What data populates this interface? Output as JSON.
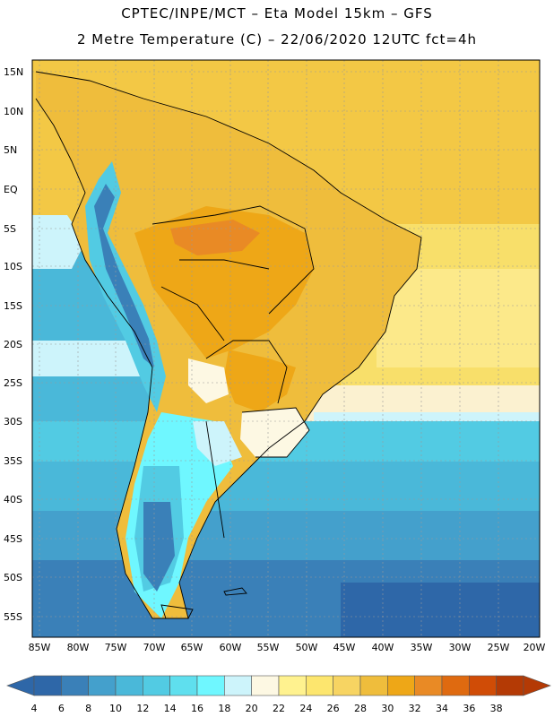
{
  "header": {
    "line1": "CPTEC/INPE/MCT –  Eta Model 15km – GFS",
    "line2": "2 Metre Temperature (C) – 22/06/2020 12UTC fct=4h"
  },
  "map": {
    "lat_labels": [
      "15N",
      "10N",
      "5N",
      "EQ",
      "5S",
      "10S",
      "15S",
      "20S",
      "25S",
      "30S",
      "35S",
      "40S",
      "45S",
      "50S",
      "55S"
    ],
    "lon_labels": [
      "85W",
      "80W",
      "75W",
      "70W",
      "65W",
      "60W",
      "55W",
      "50W",
      "45W",
      "40W",
      "35W",
      "30W",
      "25W",
      "20W"
    ]
  },
  "colorbar": {
    "labels": [
      "4",
      "6",
      "8",
      "10",
      "12",
      "14",
      "16",
      "18",
      "20",
      "22",
      "24",
      "26",
      "28",
      "30",
      "32",
      "34",
      "36",
      "38"
    ],
    "colors": [
      "#2e67a8",
      "#3a80b8",
      "#44a0cc",
      "#4ab8d9",
      "#52cbe3",
      "#5fdfee",
      "#6ff7ff",
      "#cdf4fb",
      "#fdf8e3",
      "#fff28f",
      "#fde66e",
      "#f7d462",
      "#efbd3c",
      "#eea717",
      "#e98a25",
      "#df6a10",
      "#d04c06",
      "#b43a05"
    ]
  }
}
